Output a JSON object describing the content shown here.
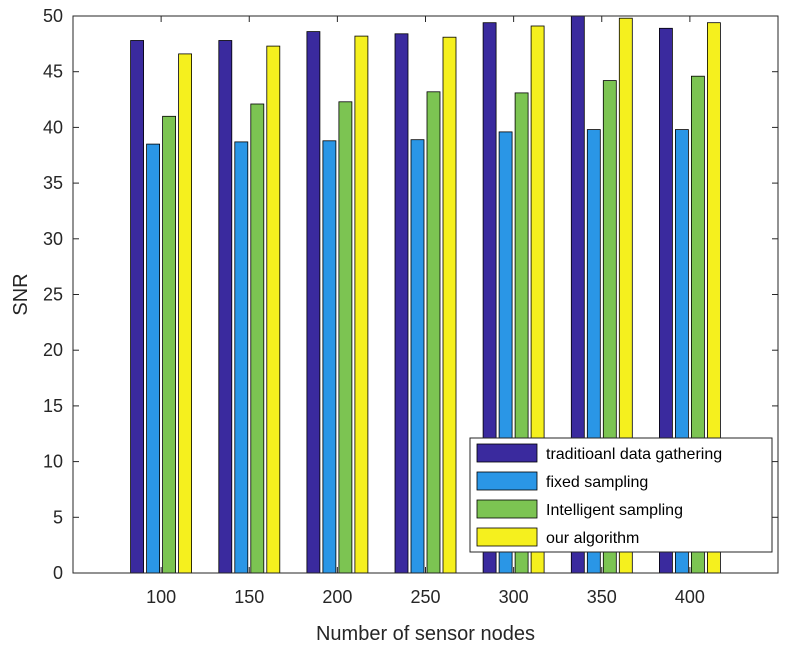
{
  "chart_data": {
    "type": "bar",
    "title": "",
    "xlabel": "Number of sensor nodes",
    "ylabel": "SNR",
    "categories": [
      "100",
      "150",
      "200",
      "250",
      "300",
      "350",
      "400"
    ],
    "ylim": [
      0,
      50
    ],
    "yticks": [
      0,
      5,
      10,
      15,
      20,
      25,
      30,
      35,
      40,
      45,
      50
    ],
    "grid": false,
    "legend_position": "bottom-right",
    "series": [
      {
        "name": "traditioanl data gathering",
        "color": "#3a2a9e",
        "values": [
          47.8,
          47.8,
          48.6,
          48.4,
          49.4,
          50.0,
          48.9
        ]
      },
      {
        "name": "fixed sampling",
        "color": "#2a96e6",
        "values": [
          38.5,
          38.7,
          38.8,
          38.9,
          39.6,
          39.8,
          39.8
        ]
      },
      {
        "name": "Intelligent sampling",
        "color": "#7cc452",
        "values": [
          41.0,
          42.1,
          42.3,
          43.2,
          43.1,
          44.2,
          44.6
        ]
      },
      {
        "name": "our algorithm",
        "color": "#f5f01e",
        "values": [
          46.6,
          47.3,
          48.2,
          48.1,
          49.1,
          49.8,
          49.4
        ]
      }
    ]
  }
}
